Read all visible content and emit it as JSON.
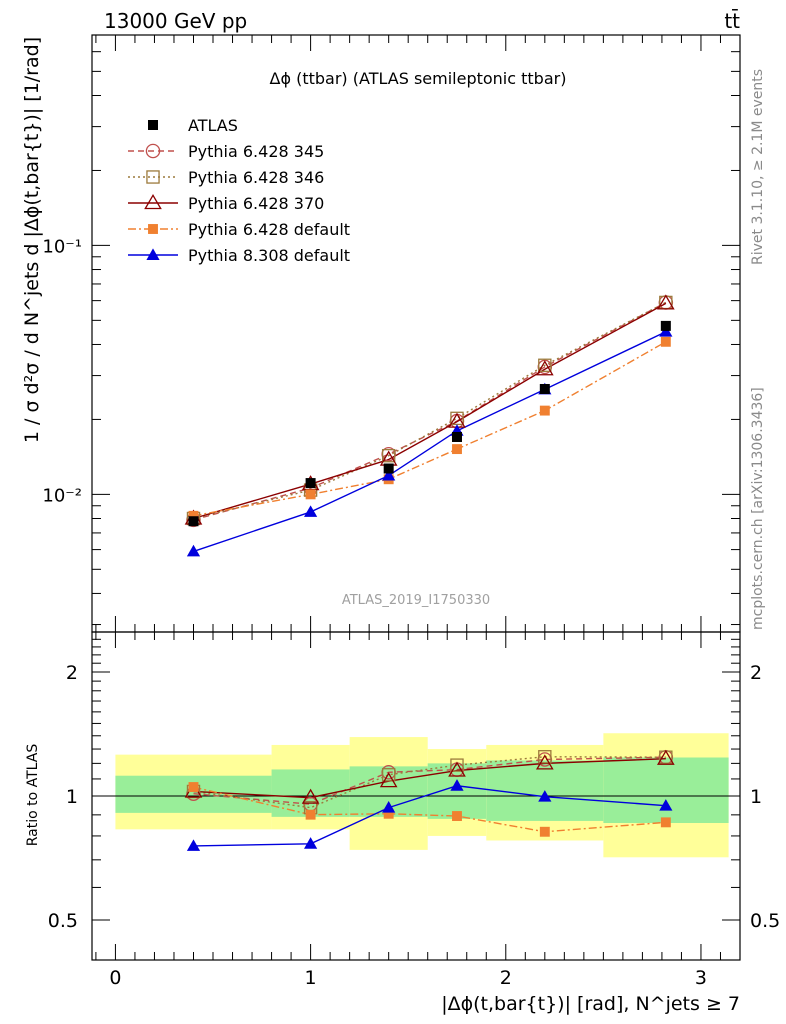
{
  "header": {
    "energy_label": "13000 GeV pp",
    "process_label": "tt̄"
  },
  "side_labels": {
    "rivet": "Rivet 3.1.10, ≥ 2.1M events",
    "mcplots": "mcplots.cern.ch [arXiv:1306.3436]"
  },
  "chart_data": {
    "type": "line",
    "title": "Δϕ (ttbar) (ATLAS semileptonic ttbar)",
    "analysis_label": "ATLAS_2019_I1750330",
    "ylabel_main": "1 / σ d²σ / d N^jets d |Δϕ(t,bar{t})| [1/rad]",
    "ylabel_ratio": "Ratio to ATLAS",
    "xlabel": "|Δϕ(t,bar{t})| [rad], N^jets ≥ 7",
    "x_ticks": [
      "0",
      "1",
      "2",
      "3"
    ],
    "y_main_ticks": [
      "10⁻²",
      "10⁻¹"
    ],
    "y_ratio_ticks": [
      "0.5",
      "1",
      "2"
    ],
    "xlim": [
      -0.12,
      3.2
    ],
    "ylim_main": [
      0.0028,
      0.7
    ],
    "ylim_ratio": [
      0.4,
      2.5
    ],
    "log_y": true,
    "bins": [
      [
        0.0,
        0.8
      ],
      [
        0.8,
        1.2
      ],
      [
        1.2,
        1.6
      ],
      [
        1.6,
        1.9
      ],
      [
        1.9,
        2.5
      ],
      [
        2.5,
        3.1416
      ]
    ],
    "x": [
      0.4,
      1.0,
      1.4,
      1.75,
      2.2,
      2.82
    ],
    "data": {
      "name": "ATLAS",
      "values": [
        0.0078,
        0.0111,
        0.0127,
        0.017,
        0.0265,
        0.0475
      ]
    },
    "series": [
      {
        "name": "Pythia 6.428 345",
        "color": "#c0504d",
        "marker": "circle-open",
        "dash": "dashed",
        "values": [
          0.0079,
          0.0106,
          0.0145,
          0.0197,
          0.0325,
          0.059
        ]
      },
      {
        "name": "Pythia 6.428 346",
        "color": "#9c7a3c",
        "marker": "square-open",
        "dash": "dotted",
        "values": [
          0.008,
          0.0104,
          0.0143,
          0.0202,
          0.033,
          0.059
        ]
      },
      {
        "name": "Pythia 6.428 370",
        "color": "#8b0000",
        "marker": "triangle-open",
        "dash": "solid",
        "values": [
          0.008,
          0.011,
          0.0138,
          0.0196,
          0.0318,
          0.0585
        ]
      },
      {
        "name": "Pythia 6.428 default",
        "color": "#f08030",
        "marker": "square-filled",
        "dash": "dashdot",
        "values": [
          0.0082,
          0.01,
          0.0115,
          0.0152,
          0.0217,
          0.041
        ]
      },
      {
        "name": "Pythia 8.308 default",
        "color": "#0000dd",
        "marker": "triangle-filled",
        "dash": "solid",
        "values": [
          0.0059,
          0.0085,
          0.0119,
          0.018,
          0.0264,
          0.045
        ]
      }
    ],
    "ratio_band_green": [
      [
        0.91,
        1.12
      ],
      [
        0.89,
        1.16
      ],
      [
        0.89,
        1.18
      ],
      [
        0.88,
        1.2
      ],
      [
        0.87,
        1.22
      ],
      [
        0.86,
        1.24
      ]
    ],
    "ratio_band_yellow": [
      [
        0.83,
        1.26
      ],
      [
        0.83,
        1.33
      ],
      [
        0.74,
        1.39
      ],
      [
        0.8,
        1.3
      ],
      [
        0.78,
        1.33
      ],
      [
        0.71,
        1.42
      ]
    ],
    "legend_position": "top-left"
  }
}
